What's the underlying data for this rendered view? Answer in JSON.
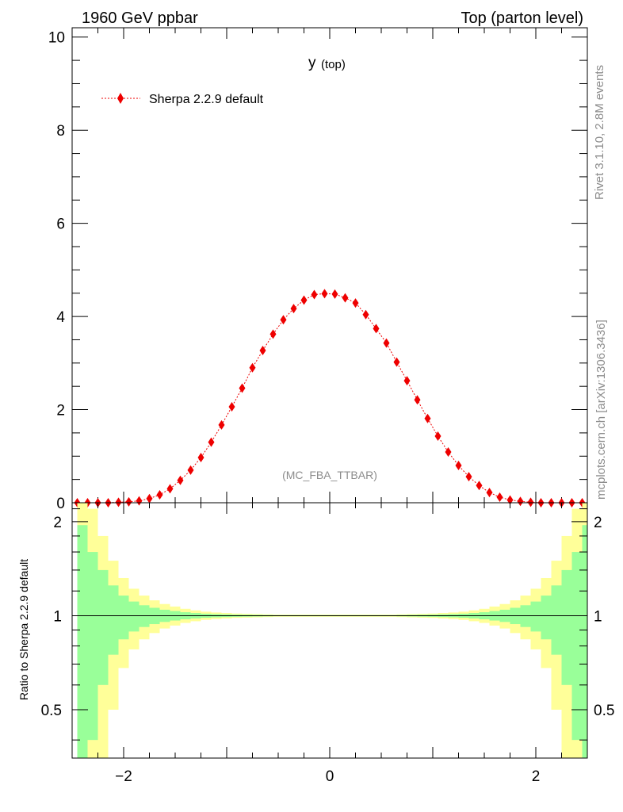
{
  "header": {
    "left": "1960 GeV ppbar",
    "right": "Top (parton level)"
  },
  "side": {
    "rivet": "Rivet 3.1.10,  2.8M events",
    "mcplots": "mcplots.cern.ch [arXiv:1306.3436]"
  },
  "colors": {
    "mc": "#ee0000",
    "band_inner": "#99ff99",
    "band_outer": "#ffff99"
  },
  "chart_data": [
    {
      "type": "line",
      "title_main": "y",
      "title_sub": "(top)",
      "analysis_label": "(MC_FBA_TTBAR)",
      "xlim": [
        -2.5,
        2.5
      ],
      "ylim": [
        0,
        10.2
      ],
      "yticks": [
        0,
        2,
        4,
        6,
        8,
        10
      ],
      "ytick_labels": [
        "0",
        "2",
        "4",
        "6",
        "8",
        "10"
      ],
      "legend_position": "top-left",
      "series": [
        {
          "name": "Sherpa 2.2.9 default",
          "marker": "diamond",
          "x": [
            -2.45,
            -2.35,
            -2.25,
            -2.15,
            -2.05,
            -1.95,
            -1.85,
            -1.75,
            -1.65,
            -1.55,
            -1.45,
            -1.35,
            -1.25,
            -1.15,
            -1.05,
            -0.95,
            -0.85,
            -0.75,
            -0.65,
            -0.55,
            -0.45,
            -0.35,
            -0.25,
            -0.15,
            -0.05,
            0.05,
            0.15,
            0.25,
            0.35,
            0.45,
            0.55,
            0.65,
            0.75,
            0.85,
            0.95,
            1.05,
            1.15,
            1.25,
            1.35,
            1.45,
            1.55,
            1.65,
            1.75,
            1.85,
            1.95,
            2.05,
            2.15,
            2.25,
            2.35,
            2.45
          ],
          "y": [
            0.0,
            0.0,
            0.0,
            0.0,
            0.01,
            0.02,
            0.04,
            0.09,
            0.17,
            0.3,
            0.48,
            0.7,
            0.97,
            1.3,
            1.67,
            2.06,
            2.46,
            2.9,
            3.27,
            3.62,
            3.93,
            4.17,
            4.35,
            4.47,
            4.49,
            4.48,
            4.4,
            4.29,
            4.04,
            3.74,
            3.43,
            3.02,
            2.62,
            2.21,
            1.81,
            1.43,
            1.09,
            0.8,
            0.56,
            0.37,
            0.22,
            0.12,
            0.06,
            0.03,
            0.01,
            0.0,
            0.0,
            0.0,
            0.0,
            0.0
          ]
        }
      ]
    },
    {
      "type": "area",
      "ylabel": "Ratio to Sherpa 2.2.9 default",
      "xlim": [
        -2.5,
        2.5
      ],
      "ylim": [
        0.35,
        2.3
      ],
      "log_y": true,
      "xticks": [
        -2,
        0,
        2
      ],
      "xtick_labels": [
        "−2",
        "0",
        "2"
      ],
      "yticks": [
        0.5,
        1,
        2
      ],
      "ytick_labels": [
        "0.5",
        "1",
        "2"
      ],
      "bins_lo": [
        -2.45,
        -2.35,
        -2.25,
        -2.15,
        -2.05,
        -1.95,
        -1.85,
        -1.75,
        -1.65,
        -1.55,
        -1.45,
        -1.35,
        -1.25,
        -1.15,
        -1.05,
        -0.95,
        -0.85,
        -0.75,
        -0.65,
        -0.55,
        -0.45,
        -0.35,
        -0.25,
        -0.15,
        -0.05,
        0.05,
        0.15,
        0.25,
        0.35,
        0.45,
        0.55,
        0.65,
        0.75,
        0.85,
        0.95,
        1.05,
        1.15,
        1.25,
        1.35,
        1.45,
        1.55,
        1.65,
        1.75,
        1.85,
        1.95,
        2.05,
        2.15,
        2.25,
        2.35,
        2.45
      ],
      "bin_width": 0.1,
      "band_inner": [
        0.95,
        0.6,
        0.4,
        0.25,
        0.16,
        0.11,
        0.08,
        0.06,
        0.045,
        0.035,
        0.026,
        0.02,
        0.015,
        0.012,
        0.01,
        0.008,
        0.007,
        0.006,
        0.005,
        0.004,
        0.004,
        0.004,
        0.004,
        0.004,
        0.004,
        0.004,
        0.004,
        0.004,
        0.004,
        0.004,
        0.004,
        0.005,
        0.006,
        0.007,
        0.008,
        0.01,
        0.012,
        0.015,
        0.02,
        0.026,
        0.035,
        0.045,
        0.06,
        0.08,
        0.11,
        0.16,
        0.25,
        0.4,
        0.6,
        0.95
      ],
      "band_outer": [
        1.9,
        1.2,
        0.8,
        0.5,
        0.32,
        0.22,
        0.16,
        0.12,
        0.09,
        0.07,
        0.052,
        0.04,
        0.03,
        0.024,
        0.02,
        0.016,
        0.014,
        0.012,
        0.01,
        0.008,
        0.008,
        0.008,
        0.008,
        0.008,
        0.008,
        0.008,
        0.008,
        0.008,
        0.008,
        0.008,
        0.008,
        0.01,
        0.012,
        0.014,
        0.016,
        0.02,
        0.024,
        0.03,
        0.04,
        0.052,
        0.07,
        0.09,
        0.12,
        0.16,
        0.22,
        0.32,
        0.5,
        0.8,
        1.2,
        1.9
      ],
      "reference_line": 1
    }
  ]
}
